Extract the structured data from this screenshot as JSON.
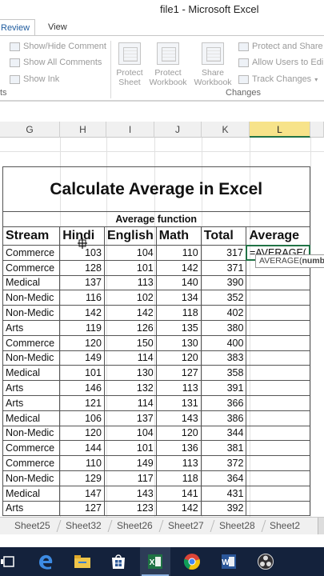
{
  "window": {
    "title": "file1 - Microsoft Excel"
  },
  "ribbon_tabs": [
    {
      "label": "Review",
      "active": true
    },
    {
      "label": "View",
      "active": false
    }
  ],
  "ribbon": {
    "show_hide_comment": "Show/Hide Comment",
    "show_all_comments": "Show All Comments",
    "show_ink": "Show Ink",
    "left_group_fragment": "ts",
    "protect_sheet": [
      "Protect",
      "Sheet"
    ],
    "protect_workbook": [
      "Protect",
      "Workbook"
    ],
    "share_workbook": [
      "Share",
      "Workbook"
    ],
    "protect_and_share": "Protect and Share",
    "allow_users": "Allow Users to Edi",
    "track_changes": "Track Changes",
    "changes_group": "Changes"
  },
  "columns": [
    {
      "label": "G",
      "selected": false
    },
    {
      "label": "H",
      "selected": false
    },
    {
      "label": "I",
      "selected": false
    },
    {
      "label": "J",
      "selected": false
    },
    {
      "label": "K",
      "selected": false
    },
    {
      "label": "L",
      "selected": true
    }
  ],
  "table": {
    "title": "Calculate Average in Excel",
    "subtitle": "Average function",
    "headers": [
      "Stream",
      "Hindi",
      "English",
      "Math",
      "Total",
      "Average"
    ],
    "active_formula": "=AVERAGE(",
    "tooltip_prefix": "AVERAGE(",
    "tooltip_bold": "numb",
    "rows": [
      [
        "Commerce",
        "103",
        "104",
        "110",
        "317"
      ],
      [
        "Commerce",
        "128",
        "101",
        "142",
        "371"
      ],
      [
        "Medical",
        "137",
        "113",
        "140",
        "390"
      ],
      [
        "Non-Medic",
        "116",
        "102",
        "134",
        "352"
      ],
      [
        "Non-Medic",
        "142",
        "142",
        "118",
        "402"
      ],
      [
        "Arts",
        "119",
        "126",
        "135",
        "380"
      ],
      [
        "Commerce",
        "120",
        "150",
        "130",
        "400"
      ],
      [
        "Non-Medic",
        "149",
        "114",
        "120",
        "383"
      ],
      [
        "Medical",
        "101",
        "130",
        "127",
        "358"
      ],
      [
        "Arts",
        "146",
        "132",
        "113",
        "391"
      ],
      [
        "Arts",
        "121",
        "114",
        "131",
        "366"
      ],
      [
        "Medical",
        "106",
        "137",
        "143",
        "386"
      ],
      [
        "Non-Medic",
        "120",
        "104",
        "120",
        "344"
      ],
      [
        "Commerce",
        "144",
        "101",
        "136",
        "381"
      ],
      [
        "Commerce",
        "110",
        "149",
        "113",
        "372"
      ],
      [
        "Non-Medic",
        "129",
        "117",
        "118",
        "364"
      ],
      [
        "Medical",
        "147",
        "143",
        "141",
        "431"
      ],
      [
        "Arts",
        "127",
        "123",
        "142",
        "392"
      ]
    ]
  },
  "sheet_tabs": [
    "Sheet25",
    "Sheet32",
    "Sheet26",
    "Sheet27",
    "Sheet28",
    "Sheet2"
  ],
  "taskbar": {
    "icons": [
      "task-view-icon",
      "edge-icon",
      "file-explorer-icon",
      "store-icon",
      "excel-icon",
      "chrome-icon",
      "word-icon",
      "obs-icon"
    ],
    "active_icon": "excel-icon"
  },
  "colors": {
    "excel_green": "#217346",
    "selected_header": "#f7e38a",
    "taskbar": "#14223c"
  }
}
